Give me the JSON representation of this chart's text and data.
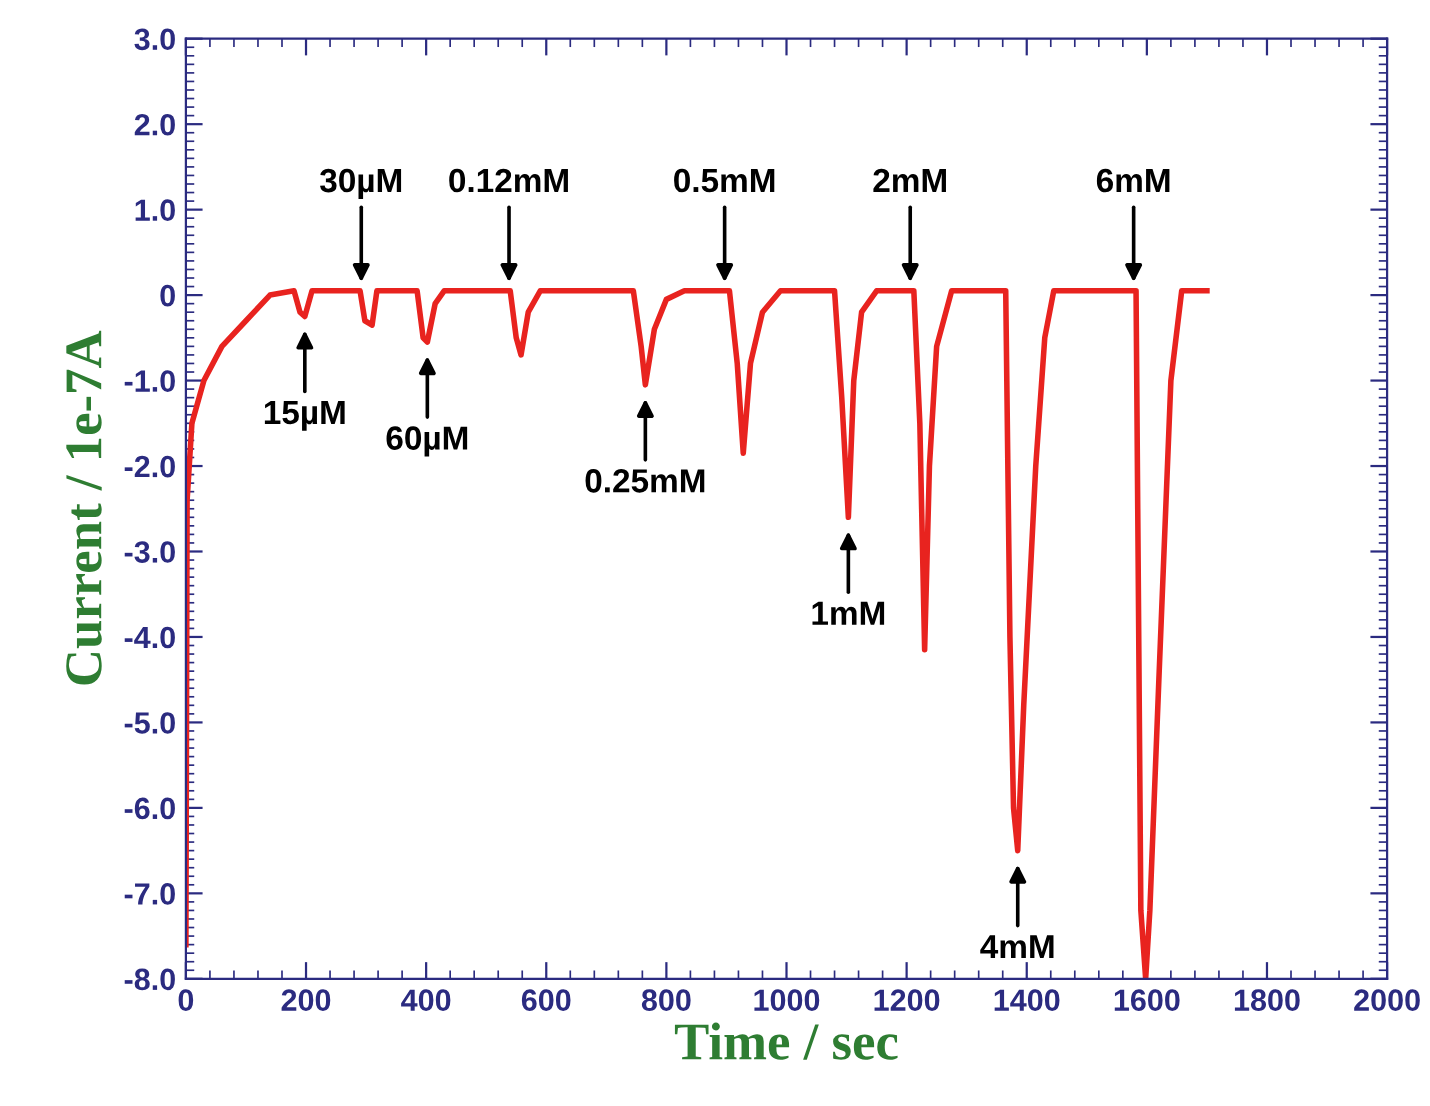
{
  "chart_data": {
    "type": "line",
    "xlabel": "Time / sec",
    "ylabel": "Current / 1e-7A",
    "xlim": [
      0,
      2000
    ],
    "xticks": [
      0,
      200,
      400,
      600,
      800,
      1000,
      1200,
      1400,
      1600,
      1800,
      2000
    ],
    "ylim": [
      -8.0,
      3.0
    ],
    "yticks": [
      {
        "value": -8,
        "label": "-8.0"
      },
      {
        "value": -7,
        "label": "-7.0"
      },
      {
        "value": -6,
        "label": "-6.0"
      },
      {
        "value": -5,
        "label": "-5.0"
      },
      {
        "value": -4,
        "label": "-4.0"
      },
      {
        "value": -3,
        "label": "-3.0"
      },
      {
        "value": -2,
        "label": "-2.0"
      },
      {
        "value": -1,
        "label": "-1.0"
      },
      0,
      {
        "value": 1,
        "label": "1.0"
      },
      {
        "value": 2,
        "label": "2.0"
      },
      {
        "value": 3,
        "label": "3.0"
      }
    ],
    "grid": false,
    "legend": false,
    "marker": "none",
    "line_style": "solid",
    "series": [
      {
        "color": "#e8231f",
        "x": [
          0,
          2,
          10,
          30,
          60,
          100,
          140,
          180,
          190,
          198,
          210,
          290,
          298,
          310,
          318,
          385,
          395,
          402,
          415,
          430,
          540,
          550,
          558,
          570,
          590,
          745,
          758,
          765,
          780,
          800,
          830,
          905,
          918,
          928,
          940,
          960,
          990,
          1080,
          1092,
          1103,
          1112,
          1125,
          1150,
          1212,
          1222,
          1230,
          1238,
          1250,
          1275,
          1365,
          1372,
          1378,
          1385,
          1395,
          1415,
          1430,
          1445,
          1582,
          1590,
          1598,
          1605,
          1620,
          1640,
          1658,
          1700
        ],
        "values": [
          -7.6,
          -2.4,
          -1.5,
          -1.0,
          -0.6,
          -0.3,
          0.0,
          0.05,
          -0.2,
          -0.25,
          0.05,
          0.05,
          -0.3,
          -0.35,
          0.05,
          0.05,
          -0.5,
          -0.55,
          -0.1,
          0.05,
          0.05,
          -0.5,
          -0.7,
          -0.2,
          0.05,
          0.05,
          -0.6,
          -1.05,
          -0.4,
          -0.05,
          0.05,
          0.05,
          -0.8,
          -1.85,
          -0.8,
          -0.2,
          0.05,
          0.05,
          -1.2,
          -2.6,
          -1.0,
          -0.2,
          0.05,
          0.05,
          -1.5,
          -4.15,
          -2.0,
          -0.6,
          0.05,
          0.05,
          -4.0,
          -6.0,
          -6.5,
          -4.8,
          -2.0,
          -0.5,
          0.05,
          0.05,
          -7.2,
          -8.0,
          -7.2,
          -4.5,
          -1.0,
          0.05,
          0.05
        ]
      }
    ],
    "annotations": [
      {
        "text": "15µM",
        "x": 198,
        "y": -0.25
      },
      {
        "text": "30µM",
        "x": 292,
        "y": 0.15
      },
      {
        "text": "60µM",
        "x": 402,
        "y": -0.55
      },
      {
        "text": "0.12mM",
        "x": 538,
        "y": 0.15
      },
      {
        "text": "0.25mM",
        "x": 765,
        "y": -1.05
      },
      {
        "text": "0.5mM",
        "x": 897,
        "y": 0.15
      },
      {
        "text": "1mM",
        "x": 1103,
        "y": -2.6
      },
      {
        "text": "2mM",
        "x": 1206,
        "y": 0.15
      },
      {
        "text": "4mM",
        "x": 1385,
        "y": -6.5
      },
      {
        "text": "6mM",
        "x": 1578,
        "y": 0.15
      }
    ]
  }
}
